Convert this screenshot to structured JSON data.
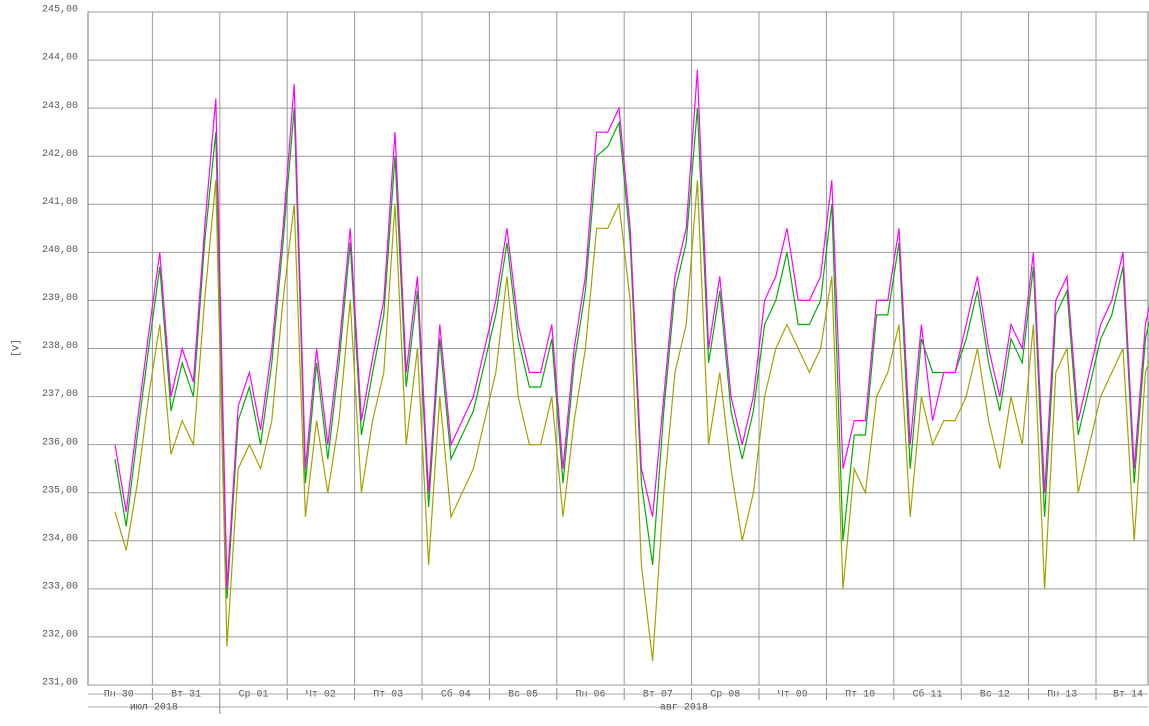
{
  "chart_data": {
    "type": "line",
    "ylabel": "[V]",
    "ylim": [
      231,
      245
    ],
    "yticks": [
      {
        "value": 231,
        "label": "231,00"
      },
      {
        "value": 232,
        "label": "232,00"
      },
      {
        "value": 233,
        "label": "233,00"
      },
      {
        "value": 234,
        "label": "234,00"
      },
      {
        "value": 235,
        "label": "235,00"
      },
      {
        "value": 236,
        "label": "236,00"
      },
      {
        "value": 237,
        "label": "237,00"
      },
      {
        "value": 238,
        "label": "238,00"
      },
      {
        "value": 239,
        "label": "239,00"
      },
      {
        "value": 240,
        "label": "240,00"
      },
      {
        "value": 241,
        "label": "241,00"
      },
      {
        "value": 242,
        "label": "242,00"
      },
      {
        "value": 243,
        "label": "243,00"
      },
      {
        "value": 244,
        "label": "244,00"
      },
      {
        "value": 245,
        "label": "245,00"
      }
    ],
    "day_labels": [
      "Пн 30",
      "Вт 31",
      "Ср 01",
      "Чт 02",
      "Пт 03",
      "Сб 04",
      "Вс 05",
      "Пн 06",
      "Вт 07",
      "Ср 08",
      "Чт 09",
      "Пт 10",
      "Сб 11",
      "Вс 12",
      "Пн 13",
      "Вт 14"
    ],
    "month_labels": [
      "июл 2018",
      "авг 2018"
    ],
    "grid": true,
    "series": [
      {
        "color": "#a8a000",
        "values": [
          234.6,
          233.8,
          235.2,
          237.0,
          238.5,
          235.8,
          236.5,
          236.0,
          239.0,
          241.5,
          231.8,
          235.5,
          236.0,
          235.5,
          236.5,
          239.0,
          241.0,
          234.5,
          236.5,
          235.0,
          236.5,
          239.0,
          235.0,
          236.5,
          237.5,
          241.0,
          236.0,
          238.0,
          233.5,
          237.0,
          234.5,
          235.0,
          235.5,
          236.5,
          237.5,
          239.5,
          237.0,
          236.0,
          236.0,
          237.0,
          234.5,
          236.5,
          238.0,
          240.5,
          240.5,
          241.0,
          239.0,
          233.5,
          231.5,
          235.0,
          237.5,
          238.5,
          241.5,
          236.0,
          237.5,
          235.5,
          234.0,
          235.0,
          237.0,
          238.0,
          238.5,
          238.0,
          237.5,
          238.0,
          239.5,
          233.0,
          235.5,
          235.0,
          237.0,
          237.5,
          238.5,
          234.5,
          237.0,
          236.0,
          236.5,
          236.5,
          237.0,
          238.0,
          236.5,
          235.5,
          237.0,
          236.0,
          238.5,
          233.0,
          237.5,
          238.0,
          235.0,
          236.0,
          237.0,
          237.5,
          238.0,
          234.0,
          237.5,
          238.2
        ]
      },
      {
        "color": "#00b000",
        "values": [
          235.7,
          234.3,
          236.2,
          238.0,
          239.7,
          236.7,
          237.7,
          237.0,
          240.2,
          242.5,
          232.8,
          236.5,
          237.2,
          236.0,
          237.7,
          240.2,
          243.0,
          235.2,
          237.7,
          235.7,
          237.7,
          240.2,
          236.2,
          237.5,
          238.7,
          242.0,
          237.2,
          239.2,
          234.7,
          238.2,
          235.7,
          236.2,
          236.7,
          237.7,
          238.7,
          240.2,
          238.2,
          237.2,
          237.2,
          238.2,
          235.2,
          237.7,
          239.2,
          242.0,
          242.2,
          242.7,
          240.2,
          235.2,
          233.5,
          236.7,
          239.2,
          240.2,
          243.0,
          237.7,
          239.2,
          236.7,
          235.7,
          236.7,
          238.5,
          239.0,
          240.0,
          238.5,
          238.5,
          239.0,
          241.0,
          234.0,
          236.2,
          236.2,
          238.7,
          238.7,
          240.2,
          235.5,
          238.2,
          237.5,
          237.5,
          237.5,
          238.2,
          239.2,
          237.7,
          236.7,
          238.2,
          237.7,
          239.7,
          234.5,
          238.7,
          239.2,
          236.2,
          237.2,
          238.2,
          238.7,
          239.7,
          235.2,
          238.2,
          239.2
        ]
      },
      {
        "color": "#ff00ff",
        "values": [
          236.0,
          234.6,
          236.5,
          238.3,
          240.0,
          237.0,
          238.0,
          237.3,
          240.5,
          243.2,
          233.0,
          236.8,
          237.5,
          236.3,
          238.0,
          240.5,
          243.5,
          235.5,
          238.0,
          236.0,
          238.0,
          240.5,
          236.5,
          237.8,
          239.0,
          242.5,
          237.5,
          239.5,
          235.0,
          238.5,
          236.0,
          236.5,
          237.0,
          238.0,
          239.0,
          240.5,
          238.5,
          237.5,
          237.5,
          238.5,
          235.5,
          238.0,
          239.5,
          242.5,
          242.5,
          243.0,
          240.5,
          235.5,
          234.5,
          237.0,
          239.5,
          240.5,
          243.8,
          238.0,
          239.5,
          237.0,
          236.0,
          237.0,
          239.0,
          239.5,
          240.5,
          239.0,
          239.0,
          239.5,
          241.5,
          235.5,
          236.5,
          236.5,
          239.0,
          239.0,
          240.5,
          236.0,
          238.5,
          236.5,
          237.5,
          237.5,
          238.5,
          239.5,
          238.0,
          237.0,
          238.5,
          238.0,
          240.0,
          235.0,
          239.0,
          239.5,
          236.5,
          237.5,
          238.5,
          239.0,
          240.0,
          235.5,
          238.5,
          239.5
        ]
      }
    ]
  }
}
